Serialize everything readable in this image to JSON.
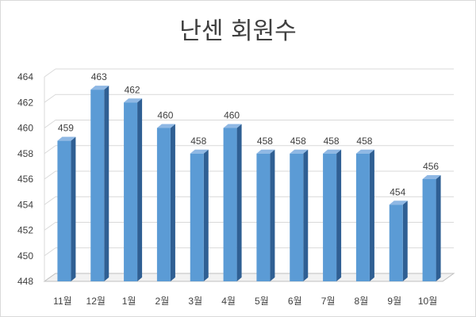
{
  "chart_data": {
    "type": "bar",
    "title": "난센 회원수",
    "categories": [
      "11월",
      "12월",
      "1월",
      "2월",
      "3월",
      "4월",
      "5월",
      "6월",
      "7월",
      "8월",
      "9월",
      "10월"
    ],
    "values": [
      459,
      463,
      462,
      460,
      458,
      460,
      458,
      458,
      458,
      458,
      454,
      456
    ],
    "ylim": [
      448,
      464
    ],
    "yticks": [
      448,
      450,
      452,
      454,
      456,
      458,
      460,
      462,
      464
    ],
    "grid": true,
    "legend": "none",
    "colors": {
      "bar_front": "#5b9bd5",
      "bar_side": "#2f5f93",
      "bar_top": "#8fb8e4",
      "grid": "#d9d9d9",
      "floor": "#bfbfbf"
    }
  }
}
